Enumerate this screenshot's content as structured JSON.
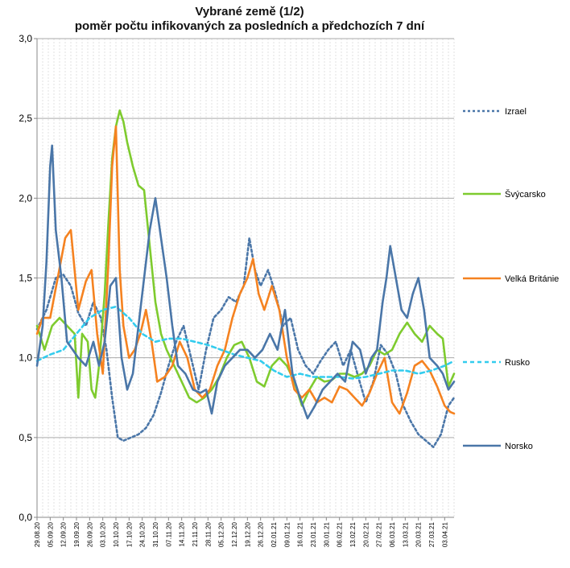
{
  "chart_data": {
    "type": "line",
    "title": "Vybrané země (1/2)",
    "subtitle": "poměr počtu infikovaných za posledních a předchozích 7 dní",
    "xlabel": "",
    "ylabel": "",
    "ylim": [
      0,
      3.0
    ],
    "yticks": [
      "0,0",
      "0,5",
      "1,0",
      "1,5",
      "2,0",
      "2,5",
      "3,0"
    ],
    "grid": true,
    "legend_position": "right",
    "x_start": "2020-08-29",
    "x_end": "2021-04-08",
    "x_tick_labels": [
      "29.08.20",
      "05.09.20",
      "12.09.20",
      "19.09.20",
      "26.09.20",
      "03.10.20",
      "10.10.20",
      "17.10.20",
      "24.10.20",
      "31.10.20",
      "07.11.20",
      "14.11.20",
      "21.11.20",
      "28.11.20",
      "05.12.20",
      "12.12.20",
      "19.12.20",
      "26.12.20",
      "02.01.21",
      "09.01.21",
      "16.01.21",
      "23.01.21",
      "30.01.21",
      "06.02.21",
      "13.02.21",
      "20.02.21",
      "27.02.21",
      "06.03.21",
      "13.03.21",
      "20.03.21",
      "27.03.21",
      "03.04.21"
    ],
    "series": [
      {
        "name": "Izrael",
        "color": "#4a76a8",
        "style": "dotted",
        "x": [
          "2020-08-29",
          "2020-09-03",
          "2020-09-08",
          "2020-09-12",
          "2020-09-16",
          "2020-09-20",
          "2020-09-24",
          "2020-09-28",
          "2020-10-02",
          "2020-10-05",
          "2020-10-08",
          "2020-10-11",
          "2020-10-14",
          "2020-10-18",
          "2020-10-22",
          "2020-10-26",
          "2020-10-30",
          "2020-11-03",
          "2020-11-07",
          "2020-11-11",
          "2020-11-15",
          "2020-11-19",
          "2020-11-23",
          "2020-11-27",
          "2020-12-01",
          "2020-12-05",
          "2020-12-09",
          "2020-12-13",
          "2020-12-17",
          "2020-12-20",
          "2020-12-23",
          "2020-12-26",
          "2020-12-30",
          "2021-01-03",
          "2021-01-07",
          "2021-01-11",
          "2021-01-15",
          "2021-01-19",
          "2021-01-23",
          "2021-01-27",
          "2021-01-31",
          "2021-02-04",
          "2021-02-08",
          "2021-02-12",
          "2021-02-16",
          "2021-02-20",
          "2021-02-24",
          "2021-02-28",
          "2021-03-04",
          "2021-03-08",
          "2021-03-12",
          "2021-03-16",
          "2021-03-20",
          "2021-03-24",
          "2021-03-28",
          "2021-04-01",
          "2021-04-05",
          "2021-04-08"
        ],
        "values": [
          1.18,
          1.3,
          1.5,
          1.52,
          1.45,
          1.28,
          1.2,
          1.35,
          1.25,
          1.05,
          0.75,
          0.5,
          0.48,
          0.5,
          0.52,
          0.56,
          0.64,
          0.78,
          0.95,
          1.1,
          1.2,
          1.0,
          0.8,
          1.05,
          1.25,
          1.3,
          1.38,
          1.35,
          1.45,
          1.75,
          1.55,
          1.45,
          1.55,
          1.4,
          1.2,
          1.25,
          1.05,
          0.95,
          0.9,
          0.98,
          1.05,
          1.1,
          0.95,
          1.05,
          0.88,
          0.72,
          0.85,
          1.08,
          1.02,
          0.9,
          0.7,
          0.6,
          0.52,
          0.48,
          0.44,
          0.52,
          0.7,
          0.75
        ]
      },
      {
        "name": "Švýcarsko",
        "color": "#7ecb2e",
        "style": "solid",
        "x": [
          "2020-08-29",
          "2020-09-02",
          "2020-09-06",
          "2020-09-10",
          "2020-09-14",
          "2020-09-18",
          "2020-09-20",
          "2020-09-22",
          "2020-09-25",
          "2020-09-27",
          "2020-09-29",
          "2020-10-01",
          "2020-10-04",
          "2020-10-06",
          "2020-10-08",
          "2020-10-10",
          "2020-10-12",
          "2020-10-14",
          "2020-10-16",
          "2020-10-19",
          "2020-10-22",
          "2020-10-25",
          "2020-10-28",
          "2020-10-31",
          "2020-11-03",
          "2020-11-06",
          "2020-11-10",
          "2020-11-14",
          "2020-11-18",
          "2020-11-22",
          "2020-11-26",
          "2020-11-30",
          "2020-12-04",
          "2020-12-08",
          "2020-12-12",
          "2020-12-16",
          "2020-12-20",
          "2020-12-24",
          "2020-12-28",
          "2021-01-01",
          "2021-01-05",
          "2021-01-09",
          "2021-01-13",
          "2021-01-17",
          "2021-01-21",
          "2021-01-25",
          "2021-01-29",
          "2021-02-02",
          "2021-02-06",
          "2021-02-10",
          "2021-02-14",
          "2021-02-18",
          "2021-02-22",
          "2021-02-26",
          "2021-03-02",
          "2021-03-06",
          "2021-03-10",
          "2021-03-14",
          "2021-03-18",
          "2021-03-22",
          "2021-03-26",
          "2021-03-30",
          "2021-04-02",
          "2021-04-05",
          "2021-04-08"
        ],
        "values": [
          1.2,
          1.05,
          1.2,
          1.25,
          1.2,
          1.15,
          0.75,
          1.15,
          1.1,
          0.8,
          0.75,
          0.95,
          1.4,
          1.85,
          2.25,
          2.45,
          2.55,
          2.48,
          2.35,
          2.2,
          2.08,
          2.05,
          1.7,
          1.35,
          1.15,
          1.05,
          0.95,
          0.85,
          0.75,
          0.72,
          0.75,
          0.8,
          0.88,
          1.0,
          1.08,
          1.1,
          1.0,
          0.85,
          0.82,
          0.95,
          1.0,
          0.95,
          0.85,
          0.7,
          0.8,
          0.88,
          0.85,
          0.86,
          0.9,
          0.9,
          0.88,
          0.9,
          0.95,
          1.05,
          1.02,
          1.05,
          1.15,
          1.22,
          1.15,
          1.1,
          1.2,
          1.15,
          1.12,
          0.82,
          0.9
        ]
      },
      {
        "name": "Velká Británie",
        "color": "#f58220",
        "style": "solid",
        "x": [
          "2020-08-29",
          "2020-09-01",
          "2020-09-05",
          "2020-09-09",
          "2020-09-13",
          "2020-09-16",
          "2020-09-20",
          "2020-09-24",
          "2020-09-27",
          "2020-09-30",
          "2020-10-03",
          "2020-10-06",
          "2020-10-08",
          "2020-10-10",
          "2020-10-12",
          "2020-10-14",
          "2020-10-17",
          "2020-10-20",
          "2020-10-23",
          "2020-10-26",
          "2020-10-29",
          "2020-11-01",
          "2020-11-05",
          "2020-11-09",
          "2020-11-13",
          "2020-11-17",
          "2020-11-21",
          "2020-11-25",
          "2020-11-29",
          "2020-12-03",
          "2020-12-07",
          "2020-12-11",
          "2020-12-15",
          "2020-12-19",
          "2020-12-22",
          "2020-12-25",
          "2020-12-28",
          "2021-01-01",
          "2021-01-05",
          "2021-01-09",
          "2021-01-13",
          "2021-01-17",
          "2021-01-21",
          "2021-01-25",
          "2021-01-29",
          "2021-02-02",
          "2021-02-06",
          "2021-02-10",
          "2021-02-14",
          "2021-02-18",
          "2021-02-22",
          "2021-02-26",
          "2021-03-02",
          "2021-03-06",
          "2021-03-10",
          "2021-03-14",
          "2021-03-18",
          "2021-03-22",
          "2021-03-26",
          "2021-03-30",
          "2021-04-03",
          "2021-04-06",
          "2021-04-08"
        ],
        "values": [
          1.15,
          1.25,
          1.25,
          1.5,
          1.75,
          1.8,
          1.3,
          1.48,
          1.55,
          1.15,
          0.9,
          1.6,
          2.2,
          2.45,
          1.55,
          1.2,
          1.0,
          1.05,
          1.15,
          1.3,
          1.1,
          0.85,
          0.88,
          0.95,
          1.1,
          1.0,
          0.8,
          0.75,
          0.8,
          0.95,
          1.05,
          1.25,
          1.4,
          1.5,
          1.62,
          1.4,
          1.3,
          1.45,
          1.3,
          1.0,
          0.8,
          0.75,
          0.8,
          0.72,
          0.75,
          0.72,
          0.82,
          0.8,
          0.75,
          0.7,
          0.78,
          0.9,
          1.0,
          0.72,
          0.65,
          0.78,
          0.95,
          0.98,
          0.92,
          0.82,
          0.7,
          0.66,
          0.65
        ]
      },
      {
        "name": "Rusko",
        "color": "#33ccee",
        "style": "dashed",
        "x": [
          "2020-08-29",
          "2020-09-05",
          "2020-09-12",
          "2020-09-19",
          "2020-09-26",
          "2020-10-03",
          "2020-10-10",
          "2020-10-17",
          "2020-10-24",
          "2020-10-31",
          "2020-11-07",
          "2020-11-14",
          "2020-11-21",
          "2020-11-28",
          "2020-12-05",
          "2020-12-12",
          "2020-12-19",
          "2020-12-26",
          "2021-01-02",
          "2021-01-09",
          "2021-01-16",
          "2021-01-23",
          "2021-01-30",
          "2021-02-06",
          "2021-02-13",
          "2021-02-20",
          "2021-02-27",
          "2021-03-06",
          "2021-03-13",
          "2021-03-20",
          "2021-03-27",
          "2021-04-03",
          "2021-04-08"
        ],
        "values": [
          0.98,
          1.02,
          1.05,
          1.15,
          1.25,
          1.3,
          1.32,
          1.25,
          1.15,
          1.1,
          1.12,
          1.12,
          1.1,
          1.08,
          1.05,
          1.02,
          1.0,
          0.98,
          0.92,
          0.88,
          0.9,
          0.88,
          0.88,
          0.88,
          0.87,
          0.88,
          0.9,
          0.92,
          0.92,
          0.9,
          0.92,
          0.95,
          0.98
        ]
      },
      {
        "name": "Norsko",
        "color": "#4a76a8",
        "style": "solid",
        "x": [
          "2020-08-29",
          "2020-09-01",
          "2020-09-03",
          "2020-09-05",
          "2020-09-06",
          "2020-09-08",
          "2020-09-11",
          "2020-09-14",
          "2020-09-17",
          "2020-09-20",
          "2020-09-24",
          "2020-09-28",
          "2020-10-01",
          "2020-10-04",
          "2020-10-07",
          "2020-10-10",
          "2020-10-13",
          "2020-10-16",
          "2020-10-19",
          "2020-10-22",
          "2020-10-25",
          "2020-10-28",
          "2020-10-31",
          "2020-11-03",
          "2020-11-06",
          "2020-11-09",
          "2020-11-12",
          "2020-11-16",
          "2020-11-20",
          "2020-11-24",
          "2020-11-27",
          "2020-11-30",
          "2020-12-03",
          "2020-12-07",
          "2020-12-11",
          "2020-12-15",
          "2020-12-19",
          "2020-12-23",
          "2020-12-27",
          "2020-12-31",
          "2021-01-04",
          "2021-01-08",
          "2021-01-12",
          "2021-01-16",
          "2021-01-20",
          "2021-01-24",
          "2021-01-28",
          "2021-02-01",
          "2021-02-05",
          "2021-02-09",
          "2021-02-13",
          "2021-02-17",
          "2021-02-20",
          "2021-02-23",
          "2021-02-26",
          "2021-03-01",
          "2021-03-03",
          "2021-03-05",
          "2021-03-08",
          "2021-03-11",
          "2021-03-14",
          "2021-03-17",
          "2021-03-20",
          "2021-03-23",
          "2021-03-26",
          "2021-03-30",
          "2021-04-02",
          "2021-04-05",
          "2021-04-08"
        ],
        "values": [
          0.95,
          1.2,
          1.6,
          2.2,
          2.33,
          1.8,
          1.5,
          1.1,
          1.05,
          1.0,
          0.95,
          1.1,
          0.95,
          1.1,
          1.45,
          1.5,
          1.0,
          0.8,
          0.9,
          1.2,
          1.5,
          1.8,
          2.0,
          1.75,
          1.5,
          1.2,
          0.95,
          0.9,
          0.8,
          0.78,
          0.8,
          0.65,
          0.85,
          0.95,
          1.0,
          1.05,
          1.05,
          1.0,
          1.05,
          1.15,
          1.05,
          1.3,
          0.9,
          0.75,
          0.62,
          0.7,
          0.8,
          0.85,
          0.9,
          0.85,
          1.1,
          1.05,
          0.9,
          1.0,
          1.05,
          1.35,
          1.5,
          1.7,
          1.5,
          1.3,
          1.25,
          1.4,
          1.5,
          1.3,
          1.0,
          0.95,
          0.9,
          0.8,
          0.85
        ]
      }
    ]
  }
}
